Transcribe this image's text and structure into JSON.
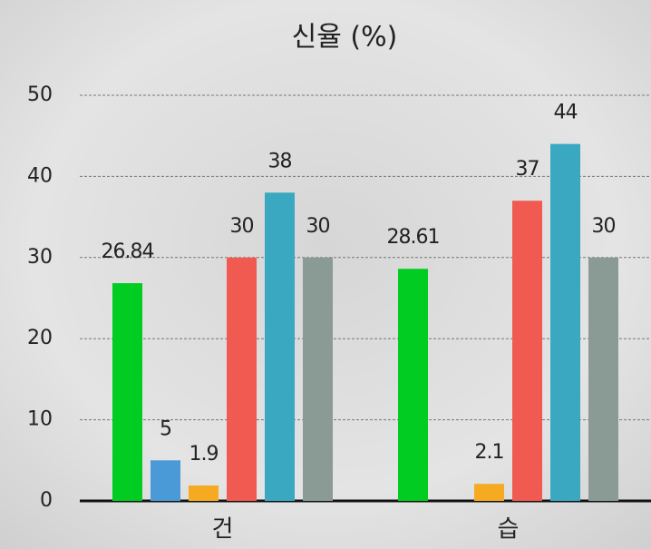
{
  "chart_data": {
    "type": "bar",
    "title": "신율 (%)",
    "categories": [
      "건",
      "습"
    ],
    "series": [
      {
        "color": "#00cc22",
        "values": [
          26.84,
          28.61
        ]
      },
      {
        "color": "#4a9ad8",
        "values": [
          5,
          null
        ]
      },
      {
        "color": "#f5aa22",
        "values": [
          1.9,
          2.1
        ]
      },
      {
        "color": "#f05a50",
        "values": [
          30,
          37
        ]
      },
      {
        "color": "#3aa8c0",
        "values": [
          38,
          44
        ]
      },
      {
        "color": "#8a9a94",
        "values": [
          30,
          30
        ]
      }
    ],
    "ylim": [
      0,
      50
    ],
    "yticks": [
      0,
      10,
      20,
      30,
      40,
      50
    ],
    "grid": true
  }
}
